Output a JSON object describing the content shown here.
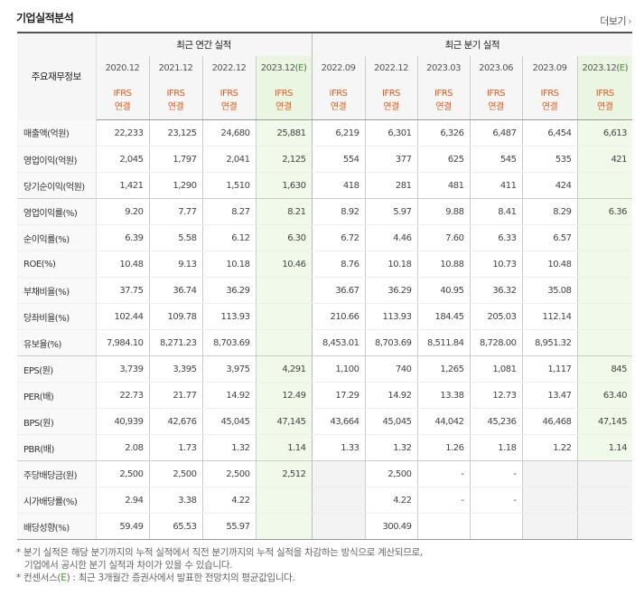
{
  "title": "기업실적분석",
  "more_label": "더보기",
  "more_icon": "chevron-right-icon",
  "header": {
    "label_col": "주요재무정보",
    "annual_group": "최근 연간 실적",
    "quarterly_group": "최근 분기 실적",
    "annual_periods": [
      "2020.12",
      "2021.12",
      "2022.12",
      "2023.12(E)"
    ],
    "quarterly_periods": [
      "2022.09",
      "2022.12",
      "2023.03",
      "2023.06",
      "2023.09",
      "2023.12(E)"
    ],
    "standard_line1": "IFRS",
    "standard_line2": "연결"
  },
  "rows": [
    {
      "label": "매출액(억원)",
      "values": [
        "22,233",
        "23,125",
        "24,680",
        "25,881",
        "6,219",
        "6,301",
        "6,326",
        "6,487",
        "6,454",
        "6,613"
      ]
    },
    {
      "label": "영업이익(억원)",
      "values": [
        "2,045",
        "1,797",
        "2,041",
        "2,125",
        "554",
        "377",
        "625",
        "545",
        "535",
        "421"
      ]
    },
    {
      "label": "당기순이익(억원)",
      "values": [
        "1,421",
        "1,290",
        "1,510",
        "1,630",
        "418",
        "281",
        "481",
        "411",
        "424",
        ""
      ]
    },
    {
      "label": "영업이익률(%)",
      "values": [
        "9.20",
        "7.77",
        "8.27",
        "8.21",
        "8.92",
        "5.97",
        "9.88",
        "8.41",
        "8.29",
        "6.36"
      ]
    },
    {
      "label": "순이익률(%)",
      "values": [
        "6.39",
        "5.58",
        "6.12",
        "6.30",
        "6.72",
        "4.46",
        "7.60",
        "6.33",
        "6.57",
        ""
      ]
    },
    {
      "label": "ROE(%)",
      "values": [
        "10.48",
        "9.13",
        "10.18",
        "10.46",
        "8.76",
        "10.18",
        "10.88",
        "10.73",
        "10.48",
        ""
      ]
    },
    {
      "label": "부채비율(%)",
      "values": [
        "37.75",
        "36.74",
        "36.29",
        "",
        "36.67",
        "36.29",
        "40.95",
        "36.32",
        "35.08",
        ""
      ]
    },
    {
      "label": "당좌비율(%)",
      "values": [
        "102.44",
        "109.78",
        "113.93",
        "",
        "210.66",
        "113.93",
        "184.45",
        "205.03",
        "112.14",
        ""
      ]
    },
    {
      "label": "유보율(%)",
      "values": [
        "7,984.10",
        "8,271.23",
        "8,703.69",
        "",
        "8,453.01",
        "8,703.69",
        "8,511.84",
        "8,728.00",
        "8,951.32",
        ""
      ]
    },
    {
      "label": "EPS(원)",
      "values": [
        "3,739",
        "3,395",
        "3,975",
        "4,291",
        "1,100",
        "740",
        "1,265",
        "1,081",
        "1,117",
        "845"
      ]
    },
    {
      "label": "PER(배)",
      "values": [
        "22.73",
        "21.77",
        "14.92",
        "12.49",
        "17.29",
        "14.92",
        "13.38",
        "12.73",
        "13.47",
        "63.40"
      ]
    },
    {
      "label": "BPS(원)",
      "values": [
        "40,939",
        "42,676",
        "45,045",
        "47,145",
        "43,664",
        "45,045",
        "44,042",
        "45,236",
        "46,468",
        "47,145"
      ]
    },
    {
      "label": "PBR(배)",
      "values": [
        "2.08",
        "1.73",
        "1.32",
        "1.14",
        "1.33",
        "1.32",
        "1.26",
        "1.18",
        "1.22",
        "1.14"
      ]
    },
    {
      "label": "주당배당금(원)",
      "values": [
        "2,500",
        "2,500",
        "2,500",
        "2,512",
        "",
        "2,500",
        "-",
        "-",
        "",
        ""
      ]
    },
    {
      "label": "시가배당률(%)",
      "values": [
        "2.94",
        "3.38",
        "4.22",
        "",
        "",
        "4.22",
        "-",
        "-",
        "",
        ""
      ]
    },
    {
      "label": "배당성향(%)",
      "values": [
        "59.49",
        "65.53",
        "55.97",
        "",
        "",
        "300.49",
        "",
        "",
        "",
        ""
      ]
    }
  ],
  "notes": {
    "line1": "* 분기 실적은 해당 분기까지의 누적 실적에서 직전 분기까지의 누적 실적을 차감하는 방식으로 계산되므로,",
    "line2": "기업에서 공시한 분기 실적과 차이가 있을 수 있습니다.",
    "line3_prefix": "* 컨센서스(",
    "line3_e": "E",
    "line3_suffix": ") : 최근 3개월간 증권사에서 발표한 전망치의 평균값입니다."
  },
  "colors": {
    "ifrs_text": "#e35a1a",
    "estimate_bg": "#f1f9ea",
    "estimate_mark": "#3a9a2a",
    "header_bg": "#f6f6f6"
  }
}
